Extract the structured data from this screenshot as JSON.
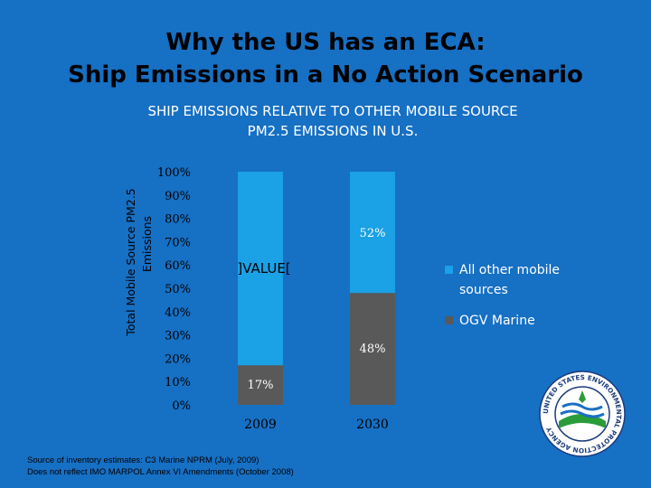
{
  "slide": {
    "title_line1": "Why the US has an ECA:",
    "title_line2": "Ship Emissions in a No Action Scenario",
    "source_line1": "Source of inventory estimates:  C3 Marine NPRM (July, 2009)",
    "source_line2": "Does not reflect IMO MARPOL Annex VI Amendments (October 2008)"
  },
  "chart_data": {
    "type": "bar",
    "stacked": true,
    "title_line1": "SHIP EMISSIONS RELATIVE TO OTHER MOBILE SOURCE",
    "title_line2": "PM2.5 EMISSIONS IN U.S.",
    "ylabel_line1": "Total Mobile Source PM2.5",
    "ylabel_line2": "Emissions",
    "categories": [
      "2009",
      "2030"
    ],
    "ylim": [
      0,
      100
    ],
    "yticks": [
      "0%",
      "10%",
      "20%",
      "30%",
      "40%",
      "50%",
      "60%",
      "70%",
      "80%",
      "90%",
      "100%"
    ],
    "series": [
      {
        "name": "OGV Marine",
        "values": [
          17,
          48
        ],
        "color": "#595959",
        "labels": [
          "17%",
          "48%"
        ]
      },
      {
        "name": "All other mobile sources",
        "values": [
          83,
          52
        ],
        "color": "#1aa1e6",
        "labels": [
          "]VALUE[",
          "52%"
        ]
      }
    ],
    "legend_position": "right",
    "grid": false
  },
  "logo": {
    "text": "UNITED STATES ENVIRONMENTAL PROTECTION AGENCY",
    "icon": "epa-seal-icon"
  }
}
